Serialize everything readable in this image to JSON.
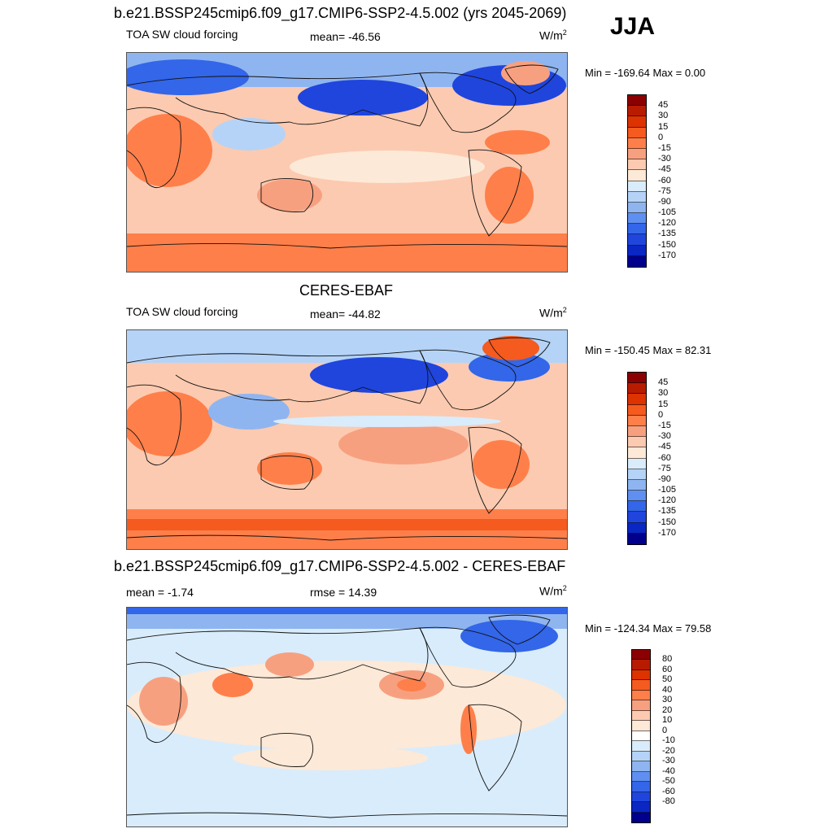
{
  "season": "JJA",
  "panels": [
    {
      "title": "b.e21.BSSP245cmip6.f09_g17.CMIP6-SSP2-4.5.002 (yrs 2045-2069)",
      "left_label": "TOA SW cloud forcing",
      "center_label": "mean= -46.56",
      "unit_base": "W/m",
      "unit_exp": "2",
      "minmax": "Min = -169.64 Max =   0.00",
      "colorbar": {
        "colors": [
          "#8b0000",
          "#b81c00",
          "#dd3300",
          "#f55a1f",
          "#ff7f4a",
          "#f7a080",
          "#fccab0",
          "#fde9d7",
          "#d9ecfb",
          "#b5d3f7",
          "#8fb5f0",
          "#5f8ff0",
          "#3366e8",
          "#1f45dd",
          "#0a27c4",
          "#00008c"
        ],
        "labels": [
          "45",
          "30",
          "15",
          "0",
          "-15",
          "-30",
          "-45",
          "-60",
          "-75",
          "-90",
          "-105",
          "-120",
          "-135",
          "-150",
          "-170"
        ]
      }
    },
    {
      "title": "CERES-EBAF",
      "left_label": "TOA SW cloud forcing",
      "center_label": "mean= -44.82",
      "unit_base": "W/m",
      "unit_exp": "2",
      "minmax": "Min = -150.45 Max =  82.31",
      "colorbar": {
        "colors": [
          "#8b0000",
          "#b81c00",
          "#dd3300",
          "#f55a1f",
          "#ff7f4a",
          "#f7a080",
          "#fccab0",
          "#fde9d7",
          "#d9ecfb",
          "#b5d3f7",
          "#8fb5f0",
          "#5f8ff0",
          "#3366e8",
          "#1f45dd",
          "#0a27c4",
          "#00008c"
        ],
        "labels": [
          "45",
          "30",
          "15",
          "0",
          "-15",
          "-30",
          "-45",
          "-60",
          "-75",
          "-90",
          "-105",
          "-120",
          "-135",
          "-150",
          "-170"
        ]
      }
    },
    {
      "title": "b.e21.BSSP245cmip6.f09_g17.CMIP6-SSP2-4.5.002 - CERES-EBAF",
      "left_label": "mean =  -1.74",
      "center_label": "rmse =  14.39",
      "unit_base": "W/m",
      "unit_exp": "2",
      "minmax": "Min = -124.34 Max =  79.58",
      "colorbar": {
        "colors": [
          "#8b0000",
          "#b81c00",
          "#dd3300",
          "#f55a1f",
          "#ff7f4a",
          "#f7a080",
          "#fccab0",
          "#fde9d7",
          "#ffffff",
          "#d9ecfb",
          "#b5d3f7",
          "#8fb5f0",
          "#5f8ff0",
          "#3366e8",
          "#1f45dd",
          "#0a27c4",
          "#00008c"
        ],
        "labels": [
          "80",
          "60",
          "50",
          "40",
          "30",
          "20",
          "10",
          "0",
          "-10",
          "-20",
          "-30",
          "-40",
          "-50",
          "-60",
          "-80"
        ]
      }
    }
  ],
  "palette": {
    "deep_blue": "#1f45dd",
    "blue": "#5f8ff0",
    "light_blue": "#d9ecfb",
    "pale": "#fde9d7",
    "salmon": "#fccab0",
    "orange": "#ff7f4a",
    "deep_orange": "#f55a1f",
    "red": "#dd3300",
    "white": "#ffffff"
  }
}
